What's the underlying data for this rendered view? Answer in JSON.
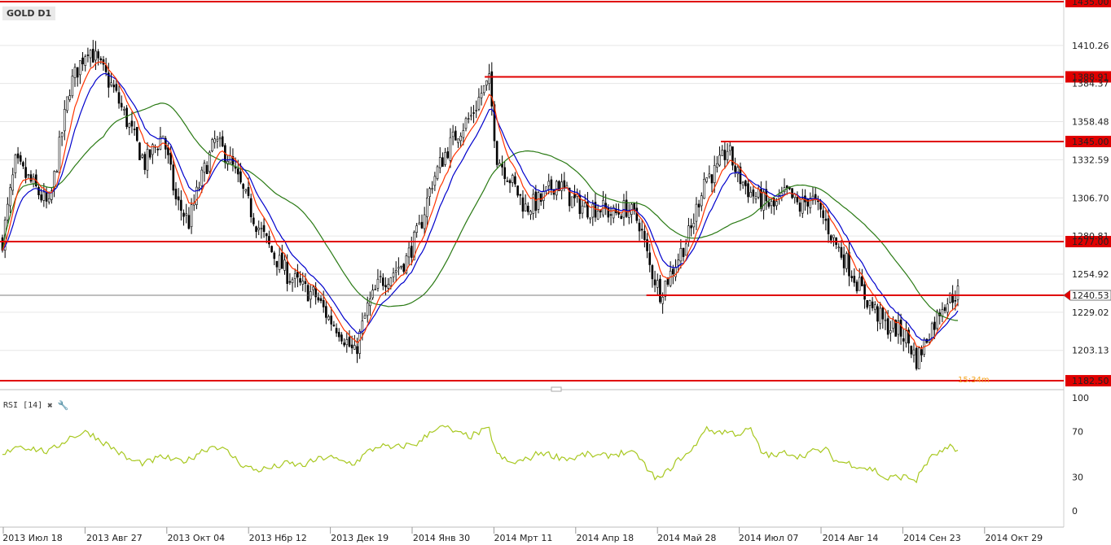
{
  "symbol": "GOLD D1",
  "indicator": {
    "name": "RSI [14]",
    "close_icon": "close-icon",
    "settings_icon": "wrench-icon"
  },
  "timer": "15:34m",
  "colors": {
    "level_line": "#e00000",
    "ema_fast": "#ff3300",
    "ema_mid": "#0000cc",
    "sma_slow": "#2a7a14",
    "candle": "#000000",
    "rsi": "#a8c820",
    "grid": "#e6e6e6"
  },
  "chart_data": {
    "type": "candlestick",
    "price_axis": {
      "range": [
        1177,
        1440
      ],
      "tick_labels": [
        "1410.26",
        "1384.37",
        "1358.48",
        "1332.59",
        "1306.70",
        "1280.81",
        "1254.92",
        "1229.02",
        "1203.13"
      ],
      "ticks": [
        1410.26,
        1384.37,
        1358.48,
        1332.59,
        1306.7,
        1280.81,
        1254.92,
        1229.02,
        1203.13
      ]
    },
    "date_axis": [
      "2013 Июл 18",
      "2013 Авг 27",
      "2013 Окт 04",
      "2013 Нбр 12",
      "2013 Дек 19",
      "2014 Янв 30",
      "2014 Мрт 11",
      "2014 Апр 18",
      "2014 Май 28",
      "2014 Июл 07",
      "2014 Авг 14",
      "2014 Сен 23",
      "2014 Окт 29"
    ],
    "levels": [
      {
        "label": "1435.00",
        "value": 1435.0,
        "start": 0.0
      },
      {
        "label": "1388.91",
        "value": 1388.91,
        "start": 0.448
      },
      {
        "label": "1345.00",
        "value": 1345.0,
        "start": 0.67
      },
      {
        "label": "1277.00",
        "value": 1277.0,
        "start": 0.0
      },
      {
        "label": "1240.53",
        "value": 1240.53,
        "start": 0.6
      },
      {
        "label": "1182.50",
        "value": 1182.5,
        "start": 0.0
      }
    ],
    "current_price": {
      "label": "1240.53",
      "value": 1240.53
    },
    "close_path": [
      [
        0,
        1278
      ],
      [
        5,
        1330
      ],
      [
        12,
        1315
      ],
      [
        18,
        1300
      ],
      [
        26,
        1382
      ],
      [
        33,
        1410
      ],
      [
        38,
        1395
      ],
      [
        43,
        1380
      ],
      [
        49,
        1355
      ],
      [
        55,
        1330
      ],
      [
        62,
        1350
      ],
      [
        67,
        1305
      ],
      [
        72,
        1290
      ],
      [
        76,
        1315
      ],
      [
        82,
        1345
      ],
      [
        87,
        1335
      ],
      [
        93,
        1310
      ],
      [
        98,
        1290
      ],
      [
        104,
        1270
      ],
      [
        110,
        1255
      ],
      [
        116,
        1245
      ],
      [
        121,
        1240
      ],
      [
        126,
        1225
      ],
      [
        130,
        1218
      ],
      [
        136,
        1200
      ],
      [
        141,
        1232
      ],
      [
        146,
        1250
      ],
      [
        150,
        1255
      ],
      [
        156,
        1265
      ],
      [
        161,
        1285
      ],
      [
        166,
        1318
      ],
      [
        171,
        1337
      ],
      [
        176,
        1352
      ],
      [
        181,
        1362
      ],
      [
        185,
        1378
      ],
      [
        188,
        1385
      ],
      [
        191,
        1335
      ],
      [
        196,
        1320
      ],
      [
        202,
        1300
      ],
      [
        208,
        1305
      ],
      [
        214,
        1318
      ],
      [
        220,
        1305
      ],
      [
        225,
        1300
      ],
      [
        231,
        1300
      ],
      [
        236,
        1295
      ],
      [
        241,
        1300
      ],
      [
        246,
        1290
      ],
      [
        250,
        1260
      ],
      [
        254,
        1243
      ],
      [
        258,
        1255
      ],
      [
        262,
        1270
      ],
      [
        266,
        1285
      ],
      [
        271,
        1320
      ],
      [
        276,
        1325
      ],
      [
        280,
        1340
      ],
      [
        284,
        1322
      ],
      [
        289,
        1310
      ],
      [
        293,
        1305
      ],
      [
        298,
        1300
      ],
      [
        303,
        1310
      ],
      [
        308,
        1300
      ],
      [
        312,
        1308
      ],
      [
        318,
        1290
      ],
      [
        322,
        1275
      ],
      [
        327,
        1260
      ],
      [
        333,
        1240
      ],
      [
        337,
        1230
      ],
      [
        341,
        1220
      ],
      [
        345,
        1218
      ],
      [
        349,
        1212
      ],
      [
        353,
        1197
      ],
      [
        356,
        1207
      ],
      [
        358,
        1217
      ],
      [
        360,
        1222
      ],
      [
        363,
        1235
      ],
      [
        366,
        1238
      ],
      [
        368,
        1242
      ]
    ],
    "candle_count": 370,
    "rsi": {
      "range": [
        0,
        100
      ],
      "tick_labels": [
        "100",
        "70",
        "30",
        "0"
      ],
      "ticks": [
        100,
        70,
        30,
        0
      ],
      "path": [
        [
          0,
          48
        ],
        [
          5,
          58
        ],
        [
          12,
          55
        ],
        [
          18,
          52
        ],
        [
          26,
          65
        ],
        [
          33,
          70
        ],
        [
          38,
          62
        ],
        [
          43,
          55
        ],
        [
          49,
          45
        ],
        [
          55,
          42
        ],
        [
          62,
          48
        ],
        [
          67,
          44
        ],
        [
          72,
          45
        ],
        [
          76,
          52
        ],
        [
          82,
          58
        ],
        [
          87,
          52
        ],
        [
          93,
          40
        ],
        [
          98,
          36
        ],
        [
          104,
          38
        ],
        [
          110,
          42
        ],
        [
          116,
          40
        ],
        [
          121,
          45
        ],
        [
          126,
          48
        ],
        [
          130,
          44
        ],
        [
          136,
          42
        ],
        [
          141,
          52
        ],
        [
          146,
          58
        ],
        [
          150,
          55
        ],
        [
          156,
          58
        ],
        [
          161,
          60
        ],
        [
          166,
          72
        ],
        [
          171,
          74
        ],
        [
          176,
          68
        ],
        [
          181,
          66
        ],
        [
          185,
          70
        ],
        [
          188,
          72
        ],
        [
          191,
          50
        ],
        [
          196,
          42
        ],
        [
          202,
          45
        ],
        [
          208,
          52
        ],
        [
          214,
          48
        ],
        [
          220,
          46
        ],
        [
          225,
          50
        ],
        [
          231,
          48
        ],
        [
          236,
          50
        ],
        [
          241,
          52
        ],
        [
          246,
          48
        ],
        [
          250,
          33
        ],
        [
          254,
          28
        ],
        [
          258,
          38
        ],
        [
          262,
          47
        ],
        [
          266,
          52
        ],
        [
          271,
          72
        ],
        [
          276,
          70
        ],
        [
          280,
          70
        ],
        [
          284,
          68
        ],
        [
          289,
          72
        ],
        [
          293,
          52
        ],
        [
          298,
          48
        ],
        [
          303,
          52
        ],
        [
          308,
          48
        ],
        [
          312,
          52
        ],
        [
          318,
          54
        ],
        [
          322,
          44
        ],
        [
          327,
          42
        ],
        [
          333,
          38
        ],
        [
          337,
          36
        ],
        [
          341,
          28
        ],
        [
          345,
          30
        ],
        [
          349,
          30
        ],
        [
          353,
          27
        ],
        [
          356,
          40
        ],
        [
          358,
          45
        ],
        [
          360,
          50
        ],
        [
          363,
          52
        ],
        [
          366,
          56
        ],
        [
          368,
          53
        ]
      ]
    }
  }
}
